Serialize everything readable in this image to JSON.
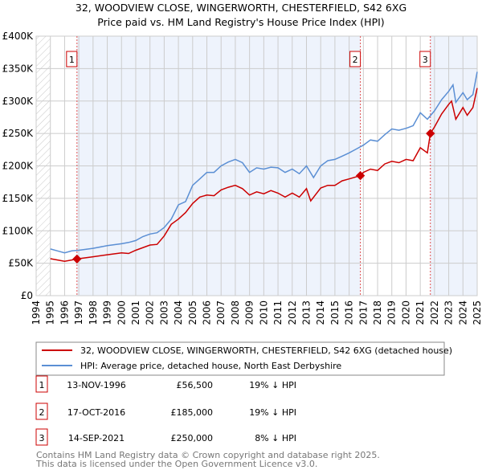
{
  "chart_data": {
    "type": "line",
    "title": "32, WOODVIEW CLOSE, WINGERWORTH, CHESTERFIELD, S42 6XG",
    "subtitle": "Price paid vs. HM Land Registry's House Price Index (HPI)",
    "xlim": [
      1994,
      2025
    ],
    "ylim": [
      0,
      400000
    ],
    "yticks": [
      0,
      50000,
      100000,
      150000,
      200000,
      250000,
      300000,
      350000,
      400000
    ],
    "ytick_labels": [
      "£0",
      "£50K",
      "£100K",
      "£150K",
      "£200K",
      "£250K",
      "£300K",
      "£350K",
      "£400K"
    ],
    "xticks": [
      1994,
      1995,
      1996,
      1997,
      1998,
      1999,
      2000,
      2001,
      2002,
      2003,
      2004,
      2005,
      2006,
      2007,
      2008,
      2009,
      2010,
      2011,
      2012,
      2013,
      2014,
      2015,
      2016,
      2017,
      2018,
      2019,
      2020,
      2021,
      2022,
      2023,
      2024,
      2025
    ],
    "grid": true,
    "legend_position": "below",
    "colors": {
      "property": "#cc0000",
      "hpi": "#5b8fd4",
      "shade": "#eef3fc",
      "marker_box": "#cc0000"
    },
    "series": [
      {
        "name": "32, WOODVIEW CLOSE, WINGERWORTH, CHESTERFIELD, S42 6XG (detached house)",
        "color": "#cc0000",
        "x": [
          1995,
          1995.5,
          1996,
          1996.5,
          1996.87,
          1997,
          1998,
          1999,
          2000,
          2000.5,
          2001,
          2002,
          2002.5,
          2003,
          2003.5,
          2004,
          2004.5,
          2005,
          2005.5,
          2006,
          2006.5,
          2007,
          2007.5,
          2008,
          2008.5,
          2009,
          2009.5,
          2010,
          2010.5,
          2011,
          2011.5,
          2012,
          2012.5,
          2013,
          2013.3,
          2014,
          2014.5,
          2015,
          2015.5,
          2016,
          2016.79,
          2017,
          2017.5,
          2018,
          2018.5,
          2019,
          2019.5,
          2020,
          2020.5,
          2021,
          2021.5,
          2021.71,
          2022,
          2022.5,
          2023,
          2023.2,
          2023.5,
          2024,
          2024.3,
          2024.7,
          2025
        ],
        "y": [
          57000,
          55000,
          53000,
          55000,
          56500,
          57000,
          60000,
          63000,
          66000,
          65000,
          70000,
          78000,
          79000,
          92000,
          110000,
          118000,
          128000,
          142000,
          152000,
          155000,
          154000,
          163000,
          167000,
          170000,
          165000,
          155000,
          160000,
          157000,
          162000,
          158000,
          152000,
          158000,
          152000,
          165000,
          146000,
          166000,
          170000,
          170000,
          177000,
          180000,
          185000,
          190000,
          195000,
          193000,
          203000,
          207000,
          205000,
          210000,
          208000,
          228000,
          220000,
          250000,
          260000,
          280000,
          295000,
          300000,
          272000,
          290000,
          278000,
          290000,
          320000
        ]
      },
      {
        "name": "HPI: Average price, detached house, North East Derbyshire",
        "color": "#5b8fd4",
        "x": [
          1995,
          1995.5,
          1996,
          1996.5,
          1997,
          1998,
          1999,
          2000,
          2000.5,
          2001,
          2001.5,
          2002,
          2002.5,
          2003,
          2003.5,
          2004,
          2004.5,
          2005,
          2005.5,
          2006,
          2006.5,
          2007,
          2007.5,
          2008,
          2008.5,
          2009,
          2009.5,
          2010,
          2010.5,
          2011,
          2011.5,
          2012,
          2012.5,
          2013,
          2013.5,
          2014,
          2014.5,
          2015,
          2015.5,
          2016,
          2016.5,
          2017,
          2017.5,
          2018,
          2018.5,
          2019,
          2019.5,
          2020,
          2020.5,
          2021,
          2021.5,
          2022,
          2022.5,
          2023,
          2023.3,
          2023.5,
          2024,
          2024.3,
          2024.7,
          2025
        ],
        "y": [
          72000,
          69000,
          66000,
          69000,
          70000,
          73000,
          77000,
          80000,
          82000,
          85000,
          91000,
          95000,
          97000,
          105000,
          118000,
          140000,
          145000,
          170000,
          180000,
          190000,
          190000,
          200000,
          206000,
          210000,
          205000,
          190000,
          197000,
          195000,
          198000,
          197000,
          190000,
          195000,
          188000,
          200000,
          182000,
          200000,
          208000,
          210000,
          215000,
          220000,
          226000,
          232000,
          240000,
          238000,
          248000,
          257000,
          255000,
          258000,
          262000,
          282000,
          272000,
          285000,
          302000,
          315000,
          325000,
          298000,
          313000,
          302000,
          310000,
          345000
        ]
      }
    ],
    "sales": [
      {
        "id": "1",
        "x": 1996.87,
        "date": "13-NOV-1996",
        "price": 56500,
        "price_label": "£56,500",
        "hpi_diff": "19% ↓ HPI"
      },
      {
        "id": "2",
        "x": 2016.79,
        "date": "17-OCT-2016",
        "price": 185000,
        "price_label": "£185,000",
        "hpi_diff": "19% ↓ HPI"
      },
      {
        "id": "3",
        "x": 2021.71,
        "date": "14-SEP-2021",
        "price": 250000,
        "price_label": "£250,000",
        "hpi_diff": "8% ↓ HPI"
      }
    ],
    "footer": [
      "Contains HM Land Registry data © Crown copyright and database right 2025.",
      "This data is licensed under the Open Government Licence v3.0."
    ]
  }
}
